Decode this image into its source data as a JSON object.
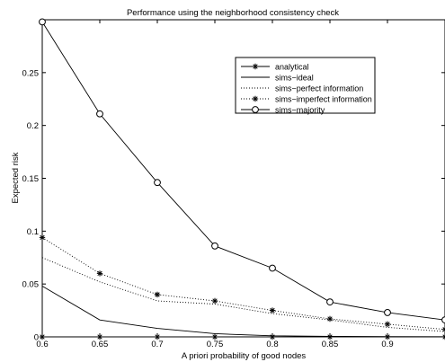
{
  "chart_data": {
    "type": "line",
    "title": "Performance using the neighborhood consistency check",
    "xlabel": "A priori probability of good nodes",
    "ylabel": "Expected risk",
    "xlim": [
      0.6,
      0.95
    ],
    "ylim": [
      0,
      0.3
    ],
    "x_ticks": [
      0.6,
      0.65,
      0.7,
      0.75,
      0.8,
      0.85,
      0.9
    ],
    "x_tick_labels": [
      "0.6",
      "0.65",
      "0.7",
      "0.75",
      "0.8",
      "0.85",
      "0.9"
    ],
    "y_ticks": [
      0,
      0.05,
      0.1,
      0.15,
      0.2,
      0.25
    ],
    "y_tick_labels": [
      "0",
      "0.05",
      "0.1",
      "0.15",
      "0.2",
      "0.25"
    ],
    "grid": false,
    "legend_position": "top-right",
    "x": [
      0.6,
      0.65,
      0.7,
      0.75,
      0.8,
      0.85,
      0.9,
      0.95
    ],
    "series": [
      {
        "name": "analytical",
        "style": "solid",
        "marker": "star",
        "values": [
          0.0,
          0.0,
          0.0,
          0.0,
          0.0,
          0.0,
          0.0,
          0.0
        ]
      },
      {
        "name": "sims−ideal",
        "style": "solid",
        "marker": "none",
        "values": [
          0.048,
          0.016,
          0.008,
          0.003,
          0.001,
          0.0005,
          0.0003,
          0.0002
        ]
      },
      {
        "name": "sims−perfect information",
        "style": "dotted",
        "marker": "none",
        "values": [
          0.075,
          0.052,
          0.034,
          0.031,
          0.022,
          0.016,
          0.009,
          0.005
        ]
      },
      {
        "name": "sims−imperfect information",
        "style": "dotted",
        "marker": "star",
        "values": [
          0.094,
          0.06,
          0.04,
          0.034,
          0.025,
          0.017,
          0.012,
          0.007
        ]
      },
      {
        "name": "sims−majority",
        "style": "solid",
        "marker": "circle",
        "values": [
          0.298,
          0.211,
          0.146,
          0.086,
          0.065,
          0.033,
          0.023,
          0.016
        ]
      }
    ]
  }
}
